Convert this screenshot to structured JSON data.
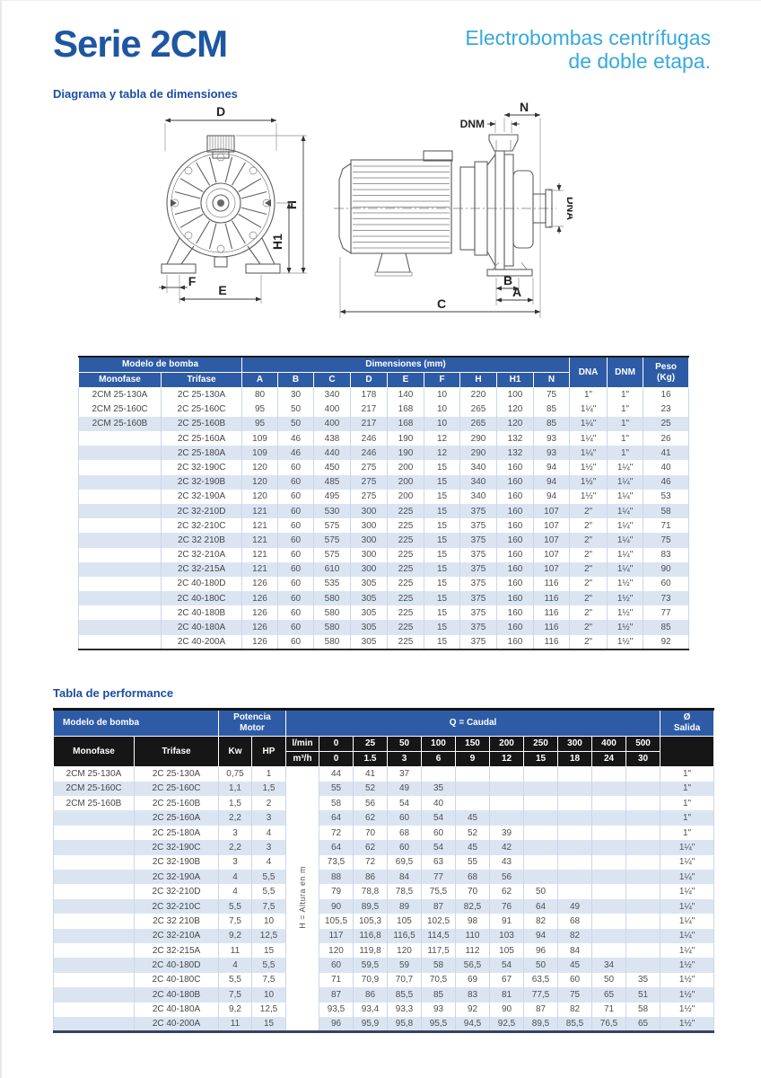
{
  "header": {
    "title": "Serie 2CM",
    "subtitle_line1": "Electrobombas centrífugas",
    "subtitle_line2": "de doble etapa."
  },
  "sections": {
    "dimensions": "Diagrama y tabla de dimensiones",
    "performance": "Tabla de performance"
  },
  "diagrams": {
    "front_view": {
      "d": "D",
      "h": "H",
      "h1": "H1",
      "f": "F",
      "e": "E"
    },
    "side_view": {
      "n": "N",
      "dnm": "DNM",
      "dna": "DNA",
      "b": "B",
      "a": "A",
      "c": "C"
    }
  },
  "dimensions_table": {
    "header": {
      "modelo": "Modelo de bomba",
      "monofase": "Monofase",
      "trifase": "Trifase",
      "dimensiones": "Dimensiones (mm)",
      "dim_cols": [
        "A",
        "B",
        "C",
        "D",
        "E",
        "F",
        "H",
        "H1",
        "N"
      ],
      "dna": "DNA",
      "dnm": "DNM",
      "peso": "Peso\n(Kg)"
    },
    "rows": [
      [
        "2CM 25-130A",
        "2C 25-130A",
        "80",
        "30",
        "340",
        "178",
        "140",
        "10",
        "220",
        "100",
        "75",
        "1\"",
        "1\"",
        "16"
      ],
      [
        "2CM 25-160C",
        "2C 25-160C",
        "95",
        "50",
        "400",
        "217",
        "168",
        "10",
        "265",
        "120",
        "85",
        "1¼\"",
        "1\"",
        "23"
      ],
      [
        "2CM 25-160B",
        "2C 25-160B",
        "95",
        "50",
        "400",
        "217",
        "168",
        "10",
        "265",
        "120",
        "85",
        "1¼\"",
        "1\"",
        "25"
      ],
      [
        "",
        "2C 25-160A",
        "109",
        "46",
        "438",
        "246",
        "190",
        "12",
        "290",
        "132",
        "93",
        "1¼\"",
        "1\"",
        "26"
      ],
      [
        "",
        "2C 25-180A",
        "109",
        "46",
        "440",
        "246",
        "190",
        "12",
        "290",
        "132",
        "93",
        "1¼\"",
        "1\"",
        "41"
      ],
      [
        "",
        "2C 32-190C",
        "120",
        "60",
        "450",
        "275",
        "200",
        "15",
        "340",
        "160",
        "94",
        "1½\"",
        "1¼\"",
        "40"
      ],
      [
        "",
        "2C 32-190B",
        "120",
        "60",
        "485",
        "275",
        "200",
        "15",
        "340",
        "160",
        "94",
        "1½\"",
        "1¼\"",
        "46"
      ],
      [
        "",
        "2C 32-190A",
        "120",
        "60",
        "495",
        "275",
        "200",
        "15",
        "340",
        "160",
        "94",
        "1½\"",
        "1¼\"",
        "53"
      ],
      [
        "",
        "2C 32-210D",
        "121",
        "60",
        "530",
        "300",
        "225",
        "15",
        "375",
        "160",
        "107",
        "2\"",
        "1¼\"",
        "58"
      ],
      [
        "",
        "2C 32-210C",
        "121",
        "60",
        "575",
        "300",
        "225",
        "15",
        "375",
        "160",
        "107",
        "2\"",
        "1¼\"",
        "71"
      ],
      [
        "",
        "2C 32 210B",
        "121",
        "60",
        "575",
        "300",
        "225",
        "15",
        "375",
        "160",
        "107",
        "2\"",
        "1¼\"",
        "75"
      ],
      [
        "",
        "2C 32-210A",
        "121",
        "60",
        "575",
        "300",
        "225",
        "15",
        "375",
        "160",
        "107",
        "2\"",
        "1¼\"",
        "83"
      ],
      [
        "",
        "2C 32-215A",
        "121",
        "60",
        "610",
        "300",
        "225",
        "15",
        "375",
        "160",
        "107",
        "2\"",
        "1¼\"",
        "90"
      ],
      [
        "",
        "2C 40-180D",
        "126",
        "60",
        "535",
        "305",
        "225",
        "15",
        "375",
        "160",
        "116",
        "2\"",
        "1½\"",
        "60"
      ],
      [
        "",
        "2C 40-180C",
        "126",
        "60",
        "580",
        "305",
        "225",
        "15",
        "375",
        "160",
        "116",
        "2\"",
        "1½\"",
        "73"
      ],
      [
        "",
        "2C 40-180B",
        "126",
        "60",
        "580",
        "305",
        "225",
        "15",
        "375",
        "160",
        "116",
        "2\"",
        "1½\"",
        "77"
      ],
      [
        "",
        "2C 40-180A",
        "126",
        "60",
        "580",
        "305",
        "225",
        "15",
        "375",
        "160",
        "116",
        "2\"",
        "1½\"",
        "85"
      ],
      [
        "",
        "2C 40-200A",
        "126",
        "60",
        "580",
        "305",
        "225",
        "15",
        "375",
        "160",
        "116",
        "2\"",
        "1½\"",
        "92"
      ]
    ]
  },
  "performance_table": {
    "header": {
      "modelo": "Modelo de bomba",
      "monofase": "Monofase",
      "trifase": "Trifase",
      "potencia": "Potencia\nMotor",
      "kw": "Kw",
      "hp": "HP",
      "caudal": "Q = Caudal",
      "salida": "Ø\nSalida",
      "lmin": "l/min",
      "m3h": "m³/h"
    },
    "flow_lmin": [
      "0",
      "25",
      "50",
      "100",
      "150",
      "200",
      "250",
      "300",
      "400",
      "500"
    ],
    "flow_m3h": [
      "0",
      "1.5",
      "3",
      "6",
      "9",
      "12",
      "15",
      "18",
      "24",
      "30"
    ],
    "altura_label": "H = Altura en m",
    "rows": [
      {
        "monofase": "2CM 25-130A",
        "trifase": "2C 25-130A",
        "kw": "0,75",
        "hp": "1",
        "values": [
          "44",
          "41",
          "37",
          "",
          "",
          "",
          "",
          "",
          "",
          ""
        ],
        "salida": "1\""
      },
      {
        "monofase": "2CM 25-160C",
        "trifase": "2C 25-160C",
        "kw": "1,1",
        "hp": "1,5",
        "values": [
          "55",
          "52",
          "49",
          "35",
          "",
          "",
          "",
          "",
          "",
          ""
        ],
        "salida": "1\""
      },
      {
        "monofase": "2CM 25-160B",
        "trifase": "2C 25-160B",
        "kw": "1,5",
        "hp": "2",
        "values": [
          "58",
          "56",
          "54",
          "40",
          "",
          "",
          "",
          "",
          "",
          ""
        ],
        "salida": "1\""
      },
      {
        "monofase": "",
        "trifase": "2C 25-160A",
        "kw": "2,2",
        "hp": "3",
        "values": [
          "64",
          "62",
          "60",
          "54",
          "45",
          "",
          "",
          "",
          "",
          ""
        ],
        "salida": "1\""
      },
      {
        "monofase": "",
        "trifase": "2C 25-180A",
        "kw": "3",
        "hp": "4",
        "values": [
          "72",
          "70",
          "68",
          "60",
          "52",
          "39",
          "",
          "",
          "",
          ""
        ],
        "salida": "1\""
      },
      {
        "monofase": "",
        "trifase": "2C 32-190C",
        "kw": "2,2",
        "hp": "3",
        "values": [
          "64",
          "62",
          "60",
          "54",
          "45",
          "42",
          "",
          "",
          "",
          ""
        ],
        "salida": "1¼\""
      },
      {
        "monofase": "",
        "trifase": "2C 32-190B",
        "kw": "3",
        "hp": "4",
        "values": [
          "73,5",
          "72",
          "69,5",
          "63",
          "55",
          "43",
          "",
          "",
          "",
          ""
        ],
        "salida": "1¼\""
      },
      {
        "monofase": "",
        "trifase": "2C 32-190A",
        "kw": "4",
        "hp": "5,5",
        "values": [
          "88",
          "86",
          "84",
          "77",
          "68",
          "56",
          "",
          "",
          "",
          ""
        ],
        "salida": "1¼\""
      },
      {
        "monofase": "",
        "trifase": "2C 32-210D",
        "kw": "4",
        "hp": "5,5",
        "values": [
          "79",
          "78,8",
          "78,5",
          "75,5",
          "70",
          "62",
          "50",
          "",
          "",
          ""
        ],
        "salida": "1¼\""
      },
      {
        "monofase": "",
        "trifase": "2C 32-210C",
        "kw": "5,5",
        "hp": "7,5",
        "values": [
          "90",
          "89,5",
          "89",
          "87",
          "82,5",
          "76",
          "64",
          "49",
          "",
          ""
        ],
        "salida": "1¼\""
      },
      {
        "monofase": "",
        "trifase": "2C 32 210B",
        "kw": "7,5",
        "hp": "10",
        "values": [
          "105,5",
          "105,3",
          "105",
          "102,5",
          "98",
          "91",
          "82",
          "68",
          "",
          ""
        ],
        "salida": "1¼\""
      },
      {
        "monofase": "",
        "trifase": "2C 32-210A",
        "kw": "9,2",
        "hp": "12,5",
        "values": [
          "117",
          "116,8",
          "116,5",
          "114,5",
          "110",
          "103",
          "94",
          "82",
          "",
          ""
        ],
        "salida": "1¼\""
      },
      {
        "monofase": "",
        "trifase": "2C 32-215A",
        "kw": "11",
        "hp": "15",
        "values": [
          "120",
          "119,8",
          "120",
          "117,5",
          "112",
          "105",
          "96",
          "84",
          "",
          ""
        ],
        "salida": "1¼\""
      },
      {
        "monofase": "",
        "trifase": "2C 40-180D",
        "kw": "4",
        "hp": "5,5",
        "values": [
          "60",
          "59,5",
          "59",
          "58",
          "56,5",
          "54",
          "50",
          "45",
          "34",
          ""
        ],
        "salida": "1½\""
      },
      {
        "monofase": "",
        "trifase": "2C 40-180C",
        "kw": "5,5",
        "hp": "7,5",
        "values": [
          "71",
          "70,9",
          "70,7",
          "70,5",
          "69",
          "67",
          "63,5",
          "60",
          "50",
          "35"
        ],
        "salida": "1½\""
      },
      {
        "monofase": "",
        "trifase": "2C 40-180B",
        "kw": "7,5",
        "hp": "10",
        "values": [
          "87",
          "86",
          "85,5",
          "85",
          "83",
          "81",
          "77,5",
          "75",
          "65",
          "51"
        ],
        "salida": "1½\""
      },
      {
        "monofase": "",
        "trifase": "2C 40-180A",
        "kw": "9,2",
        "hp": "12,5",
        "values": [
          "93,5",
          "93,4",
          "93,3",
          "93",
          "92",
          "90",
          "87",
          "82",
          "71",
          "58"
        ],
        "salida": "1½\""
      },
      {
        "monofase": "",
        "trifase": "2C 40-200A",
        "kw": "11",
        "hp": "15",
        "values": [
          "96",
          "95,9",
          "95,8",
          "95,5",
          "94,5",
          "92,5",
          "89,5",
          "85,5",
          "76,5",
          "65"
        ],
        "salida": "1½\""
      }
    ]
  }
}
